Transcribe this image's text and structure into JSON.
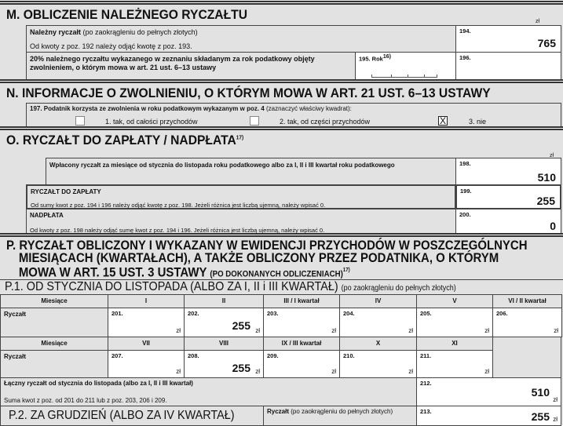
{
  "section_m": {
    "title": "M. OBLICZENIE NALEŻNEGO RYCZAŁTU",
    "currency": "zł",
    "row194": {
      "label_bold": "Należny ryczałt",
      "label_note": "(po zaokrągleniu do pełnych złotych)",
      "hint": "Od kwoty z poz. 192 należy odjąć kwotę z poz. 193.",
      "num": "194.",
      "value": "765"
    },
    "row196": {
      "label": "20% należnego ryczałtu wykazanego w zeznaniu składanym za rok podatkowy objęty zwolnieniem, o którym mowa w art. 21 ust. 6–13 ustawy",
      "year_num": "195. Rok",
      "year_sup": "16)",
      "num": "196.",
      "value": ""
    }
  },
  "section_n": {
    "title": "N. INFORMACJE O ZWOLNIENIU, O KTÓRYM MOWA W ART. 21 UST. 6–13 USTAWY",
    "question_bold": "197. Podatnik korzysta ze zwolnienia w roku podatkowym wykazanym w poz. 4",
    "question_note": "(zaznaczyć właściwy kwadrat):",
    "options": [
      {
        "label": "1. tak, od całości przychodów",
        "checked": false
      },
      {
        "label": "2. tak, od części przychodów",
        "checked": false
      },
      {
        "label": "3. nie",
        "checked": true
      }
    ],
    "check_mark": "X"
  },
  "section_o": {
    "title": "O. RYCZAŁT DO ZAPŁATY / NADPŁATA",
    "title_sup": "17)",
    "currency": "zł",
    "row198": {
      "label": "Wpłacony ryczałt za miesiące od stycznia do listopada roku podatkowego albo za I, II i III kwartał roku podatkowego",
      "num": "198.",
      "value": "510"
    },
    "row199": {
      "label": "RYCZAŁT DO ZAPŁATY",
      "hint": "Od sumy kwot z poz. 194  i 196 należy odjąć kwotę z poz. 198. Jeżeli różnica jest liczbą ujemną, należy wpisać 0.",
      "num": "199.",
      "value": "255"
    },
    "row200": {
      "label": "NADPŁATA",
      "hint": "Od kwoty z poz. 198 należy odjąć sumę kwot z poz. 194  i 196. Jeżeli różnica jest liczbą ujemną, należy wpisać 0.",
      "num": "200.",
      "value": "0"
    }
  },
  "section_p": {
    "title": "P. RYCZAŁT OBLICZONY I WYKAZANY W EWIDENCJI PRZYCHODÓW W POSZCZEGÓLNYCH MIESIĄCACH (KWARTAŁACH), A TAKŻE OBLICZONY PRZEZ PODATNIKA, O KTÓRYM MOWA W ART. 15 UST. 3 USTAWY",
    "title_small": "(PO DOKONANYCH ODLICZENIACH)",
    "title_sup": "17)",
    "p1": {
      "title": "P.1. OD STYCZNIA DO LISTOPADA (ALBO ZA I, II i III KWARTAŁ)",
      "note": "(po zaokrągleniu do pełnych złotych)",
      "months_label": "Miesiące",
      "ryczalt_label": "Ryczałt",
      "currency": "zł",
      "row1": [
        {
          "h": "I",
          "num": "201.",
          "value": ""
        },
        {
          "h": "II",
          "num": "202.",
          "value": "255"
        },
        {
          "h": "III / I kwartał",
          "num": "203.",
          "value": ""
        },
        {
          "h": "IV",
          "num": "204.",
          "value": ""
        },
        {
          "h": "V",
          "num": "205.",
          "value": ""
        },
        {
          "h": "VI / II kwartał",
          "num": "206.",
          "value": ""
        }
      ],
      "row2": [
        {
          "h": "VII",
          "num": "207.",
          "value": ""
        },
        {
          "h": "VIII",
          "num": "208.",
          "value": "255"
        },
        {
          "h": "IX / III kwartał",
          "num": "209.",
          "value": ""
        },
        {
          "h": "X",
          "num": "210.",
          "value": ""
        },
        {
          "h": "XI",
          "num": "211.",
          "value": ""
        }
      ],
      "total": {
        "label": "Łączny ryczałt od stycznia do listopada (albo za I, II i III kwartał)",
        "hint": "Suma kwot z poz. od 201 do 211 lub z poz. 203, 206 i 209.",
        "num": "212.",
        "value": "510"
      }
    },
    "p2": {
      "title": "P.2. ZA GRUDZIEŃ (ALBO ZA IV KWARTAŁ)",
      "label_bold": "Ryczałt",
      "label_note": "(po zaokrągleniu do pełnych złotych)",
      "num": "213.",
      "value": "255",
      "currency": "zł"
    }
  }
}
